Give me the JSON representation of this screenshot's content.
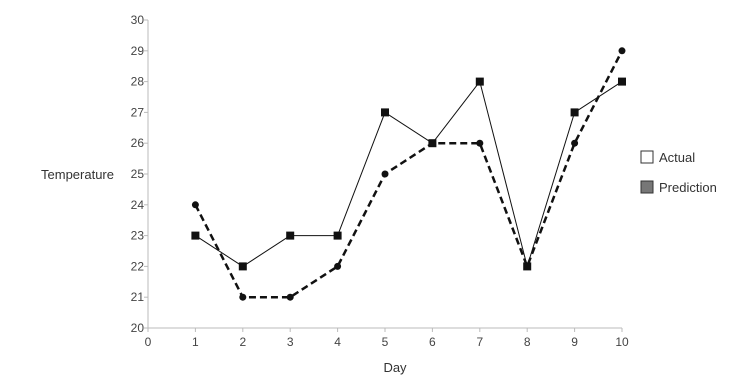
{
  "chart_data": {
    "type": "line",
    "xlabel": "Day",
    "ylabel": "Temperature",
    "x": [
      1,
      2,
      3,
      4,
      5,
      6,
      7,
      8,
      9,
      10
    ],
    "xlim": [
      0,
      10
    ],
    "ylim": [
      20,
      30
    ],
    "x_ticks": [
      "0",
      "1",
      "2",
      "3",
      "4",
      "5",
      "6",
      "7",
      "8",
      "9",
      "10"
    ],
    "y_ticks": [
      "20",
      "21",
      "22",
      "23",
      "24",
      "25",
      "26",
      "27",
      "28",
      "29",
      "30"
    ],
    "grid": false,
    "legend_position": "right",
    "series": [
      {
        "name": "Actual",
        "values": [
          23,
          22,
          23,
          23,
          27,
          26,
          28,
          22,
          27,
          28
        ],
        "line_style": "solid",
        "marker": "square",
        "color": "#111111",
        "legend_swatch": "#ffffff"
      },
      {
        "name": "Prediction",
        "values": [
          24,
          21,
          21,
          22,
          25,
          26,
          26,
          22,
          26,
          29
        ],
        "line_style": "dashed",
        "marker": "circle",
        "color": "#111111",
        "legend_swatch": "#777777"
      }
    ]
  }
}
